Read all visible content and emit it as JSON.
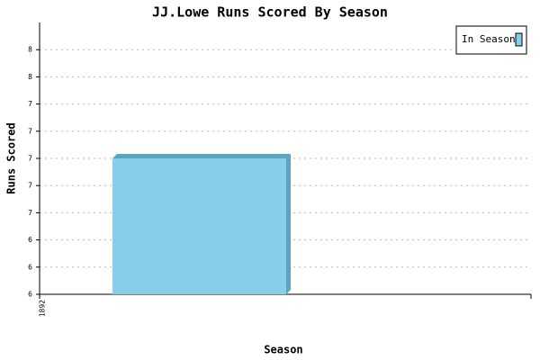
{
  "chart_data": {
    "type": "bar",
    "title": "JJ.Lowe Runs Scored By Season",
    "x_label": "Season",
    "y_label": "Runs Scored",
    "categories": [
      "1892"
    ],
    "series": [
      {
        "name": "In Season",
        "color": "#87ceeb",
        "values": [
          7
        ]
      }
    ],
    "ylim": [
      6,
      8
    ],
    "yticks": [
      6,
      {
        "value": 6.2,
        "label": "6"
      },
      {
        "value": 6.4,
        "label": "6"
      },
      {
        "value": 6.6,
        "label": "7"
      },
      {
        "value": 6.8,
        "label": "7"
      },
      7,
      {
        "value": 7.2,
        "label": "7"
      },
      {
        "value": 7.4,
        "label": "7"
      },
      {
        "value": 7.6,
        "label": "8"
      },
      {
        "value": 7.8,
        "label": "8"
      }
    ],
    "grid": true,
    "legend": "top-right"
  }
}
